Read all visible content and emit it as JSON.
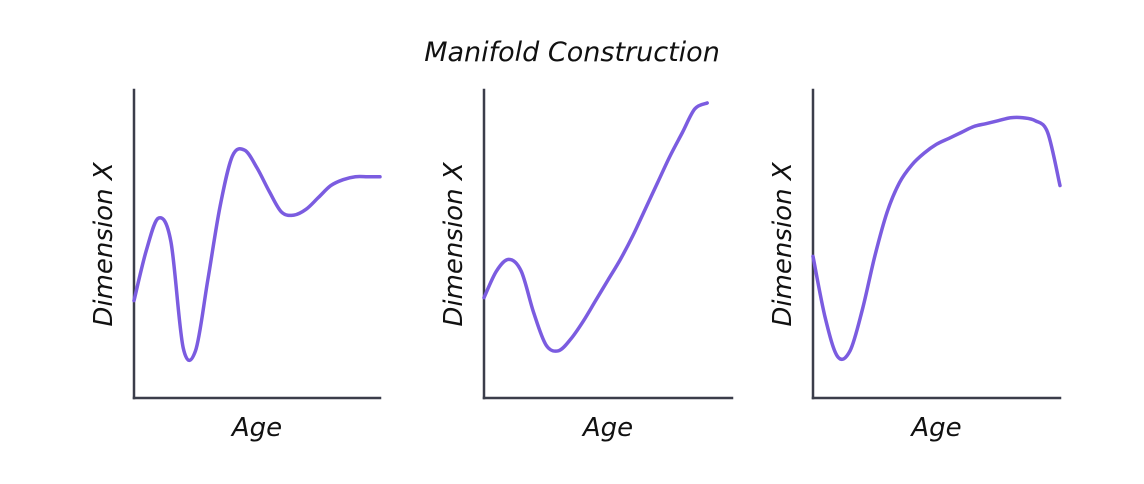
{
  "title": "Manifold Construction",
  "colors": {
    "curve": "#7b5ce0",
    "axis": "#3b3d4a"
  },
  "chart_data": [
    {
      "type": "line",
      "xlabel": "Age",
      "ylabel": "Dimension X",
      "xlim": [
        0,
        1
      ],
      "ylim": [
        0,
        1
      ],
      "grid": false,
      "ticks": false,
      "series": [
        {
          "x": [
            0.0,
            0.05,
            0.1,
            0.15,
            0.2,
            0.25,
            0.3,
            0.35,
            0.4,
            0.45,
            0.5,
            0.55,
            0.6,
            0.65,
            0.7,
            0.75,
            0.8,
            0.85,
            0.9,
            0.95,
            1.0
          ],
          "y": [
            0.33,
            0.5,
            0.61,
            0.53,
            0.17,
            0.16,
            0.4,
            0.65,
            0.82,
            0.84,
            0.78,
            0.7,
            0.63,
            0.62,
            0.64,
            0.68,
            0.72,
            0.74,
            0.75,
            0.75,
            0.75
          ]
        }
      ]
    },
    {
      "type": "line",
      "xlabel": "Age",
      "ylabel": "Dimension X",
      "xlim": [
        0,
        1
      ],
      "ylim": [
        0,
        1
      ],
      "grid": false,
      "ticks": false,
      "series": [
        {
          "x": [
            0.0,
            0.05,
            0.1,
            0.15,
            0.2,
            0.25,
            0.3,
            0.35,
            0.4,
            0.45,
            0.5,
            0.55,
            0.6,
            0.65,
            0.7,
            0.75,
            0.8,
            0.85,
            0.9
          ],
          "y": [
            0.34,
            0.43,
            0.47,
            0.43,
            0.29,
            0.18,
            0.16,
            0.2,
            0.26,
            0.33,
            0.4,
            0.47,
            0.55,
            0.64,
            0.73,
            0.82,
            0.9,
            0.98,
            1.0
          ]
        }
      ]
    },
    {
      "type": "line",
      "xlabel": "Age",
      "ylabel": "Dimension X",
      "xlim": [
        0,
        1
      ],
      "ylim": [
        0,
        1
      ],
      "grid": false,
      "ticks": false,
      "series": [
        {
          "x": [
            0.0,
            0.05,
            0.1,
            0.15,
            0.2,
            0.25,
            0.3,
            0.35,
            0.4,
            0.45,
            0.5,
            0.55,
            0.6,
            0.65,
            0.7,
            0.75,
            0.8,
            0.85,
            0.9,
            0.95,
            1.0
          ],
          "y": [
            0.48,
            0.27,
            0.14,
            0.16,
            0.3,
            0.48,
            0.63,
            0.73,
            0.79,
            0.83,
            0.86,
            0.88,
            0.9,
            0.92,
            0.93,
            0.94,
            0.95,
            0.95,
            0.94,
            0.9,
            0.72
          ]
        }
      ]
    }
  ]
}
